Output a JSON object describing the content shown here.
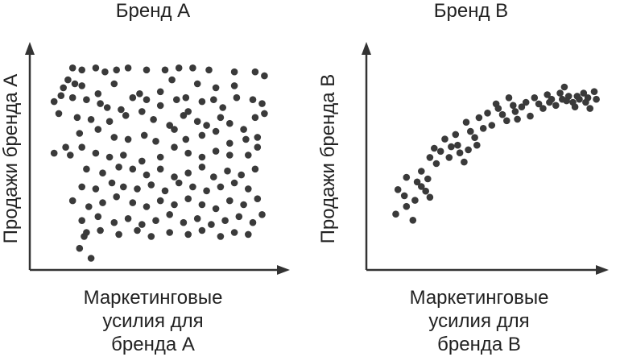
{
  "colors": {
    "ink": "#333333",
    "point": "#3a3a3a"
  },
  "chart_data": [
    {
      "type": "scatter",
      "title": "Бренд А",
      "xlabel": "Маркетинговые\nусилия для\nбренда А",
      "ylabel": "Продажи бренда А",
      "xlim": [
        0,
        100
      ],
      "ylim": [
        0,
        100
      ],
      "grid": false,
      "points": [
        [
          14,
          95
        ],
        [
          18,
          94
        ],
        [
          24,
          95
        ],
        [
          28,
          93
        ],
        [
          33,
          94
        ],
        [
          38,
          95
        ],
        [
          46,
          94
        ],
        [
          54,
          94
        ],
        [
          60,
          95
        ],
        [
          66,
          95
        ],
        [
          73,
          94
        ],
        [
          84,
          93
        ],
        [
          93,
          93
        ],
        [
          97,
          91
        ],
        [
          10,
          85
        ],
        [
          12,
          89
        ],
        [
          15,
          87
        ],
        [
          18,
          86
        ],
        [
          25,
          82
        ],
        [
          32,
          87
        ],
        [
          43,
          82
        ],
        [
          52,
          83
        ],
        [
          57,
          89
        ],
        [
          63,
          80
        ],
        [
          68,
          87
        ],
        [
          76,
          85
        ],
        [
          84,
          86
        ],
        [
          92,
          79
        ],
        [
          6,
          78
        ],
        [
          9,
          81
        ],
        [
          14,
          80
        ],
        [
          20,
          79
        ],
        [
          26,
          77
        ],
        [
          29,
          75
        ],
        [
          35,
          74
        ],
        [
          40,
          80
        ],
        [
          46,
          79
        ],
        [
          52,
          76
        ],
        [
          59,
          79
        ],
        [
          64,
          73
        ],
        [
          70,
          78
        ],
        [
          75,
          79
        ],
        [
          79,
          75
        ],
        [
          85,
          80
        ],
        [
          96,
          77
        ],
        [
          8,
          72
        ],
        [
          16,
          70
        ],
        [
          22,
          69
        ],
        [
          30,
          68
        ],
        [
          37,
          71
        ],
        [
          44,
          73
        ],
        [
          49,
          69
        ],
        [
          56,
          66
        ],
        [
          62,
          71
        ],
        [
          68,
          68
        ],
        [
          72,
          66
        ],
        [
          78,
          70
        ],
        [
          82,
          67
        ],
        [
          88,
          64
        ],
        [
          93,
          70
        ],
        [
          97,
          72
        ],
        [
          17,
          62
        ],
        [
          25,
          64
        ],
        [
          32,
          60
        ],
        [
          38,
          59
        ],
        [
          45,
          61
        ],
        [
          50,
          58
        ],
        [
          58,
          64
        ],
        [
          63,
          59
        ],
        [
          70,
          61
        ],
        [
          76,
          63
        ],
        [
          82,
          57
        ],
        [
          89,
          59
        ],
        [
          94,
          60
        ],
        [
          6,
          52
        ],
        [
          11,
          55
        ],
        [
          13,
          51
        ],
        [
          18,
          55
        ],
        [
          24,
          52
        ],
        [
          30,
          50
        ],
        [
          36,
          51
        ],
        [
          44,
          48
        ],
        [
          52,
          50
        ],
        [
          58,
          55
        ],
        [
          64,
          52
        ],
        [
          70,
          50
        ],
        [
          76,
          53
        ],
        [
          82,
          51
        ],
        [
          90,
          51
        ],
        [
          94,
          55
        ],
        [
          20,
          44
        ],
        [
          27,
          42
        ],
        [
          34,
          45
        ],
        [
          40,
          44
        ],
        [
          46,
          41
        ],
        [
          52,
          44
        ],
        [
          58,
          40
        ],
        [
          64,
          42
        ],
        [
          70,
          45
        ],
        [
          75,
          40
        ],
        [
          81,
          43
        ],
        [
          87,
          41
        ],
        [
          93,
          44
        ],
        [
          18,
          35
        ],
        [
          24,
          34
        ],
        [
          31,
          37
        ],
        [
          36,
          35
        ],
        [
          42,
          34
        ],
        [
          48,
          36
        ],
        [
          54,
          33
        ],
        [
          60,
          37
        ],
        [
          66,
          35
        ],
        [
          72,
          33
        ],
        [
          78,
          35
        ],
        [
          84,
          37
        ],
        [
          90,
          34
        ],
        [
          14,
          28
        ],
        [
          21,
          25
        ],
        [
          27,
          27
        ],
        [
          33,
          30
        ],
        [
          40,
          27
        ],
        [
          46,
          25
        ],
        [
          52,
          28
        ],
        [
          58,
          26
        ],
        [
          64,
          29
        ],
        [
          70,
          26
        ],
        [
          76,
          24
        ],
        [
          82,
          28
        ],
        [
          88,
          26
        ],
        [
          94,
          29
        ],
        [
          18,
          18
        ],
        [
          25,
          20
        ],
        [
          32,
          17
        ],
        [
          38,
          19
        ],
        [
          44,
          16
        ],
        [
          50,
          18
        ],
        [
          56,
          21
        ],
        [
          62,
          17
        ],
        [
          68,
          19
        ],
        [
          74,
          16
        ],
        [
          80,
          18
        ],
        [
          86,
          20
        ],
        [
          92,
          17
        ],
        [
          96,
          21
        ],
        [
          20,
          12
        ],
        [
          26,
          13
        ],
        [
          34,
          11
        ],
        [
          42,
          13
        ],
        [
          48,
          10
        ],
        [
          56,
          12
        ],
        [
          64,
          11
        ],
        [
          70,
          13
        ],
        [
          78,
          10
        ],
        [
          84,
          12
        ],
        [
          90,
          11
        ],
        [
          17,
          4
        ],
        [
          19,
          10
        ],
        [
          22,
          -1
        ]
      ]
    },
    {
      "type": "scatter",
      "title": "Бренд В",
      "xlabel": "Маркетинговые\nусилия для\nбренда В",
      "ylabel": "Продажи бренда В",
      "xlim": [
        0,
        100
      ],
      "ylim": [
        0,
        100
      ],
      "grid": false,
      "points": [
        [
          7,
          17
        ],
        [
          8,
          33
        ],
        [
          11,
          29
        ],
        [
          12,
          41
        ],
        [
          12,
          22
        ],
        [
          15,
          13
        ],
        [
          16,
          26
        ],
        [
          17,
          38
        ],
        [
          19,
          45
        ],
        [
          19,
          35
        ],
        [
          21,
          32
        ],
        [
          23,
          28
        ],
        [
          22,
          40
        ],
        [
          23,
          54
        ],
        [
          25,
          60
        ],
        [
          26,
          50
        ],
        [
          28,
          58
        ],
        [
          30,
          66
        ],
        [
          32,
          54
        ],
        [
          33,
          61
        ],
        [
          35,
          69
        ],
        [
          36,
          62
        ],
        [
          37,
          57
        ],
        [
          39,
          51
        ],
        [
          41,
          59
        ],
        [
          42,
          71
        ],
        [
          44,
          67
        ],
        [
          45,
          62
        ],
        [
          40,
          77
        ],
        [
          46,
          80
        ],
        [
          48,
          73
        ],
        [
          50,
          83
        ],
        [
          52,
          75
        ],
        [
          54,
          89
        ],
        [
          55,
          86
        ],
        [
          57,
          82
        ],
        [
          59,
          78
        ],
        [
          60,
          93
        ],
        [
          62,
          88
        ],
        [
          63,
          84
        ],
        [
          64,
          79
        ],
        [
          66,
          87
        ],
        [
          68,
          90
        ],
        [
          70,
          81
        ],
        [
          72,
          93
        ],
        [
          74,
          89
        ],
        [
          76,
          86
        ],
        [
          78,
          95
        ],
        [
          79,
          90
        ],
        [
          80,
          92
        ],
        [
          82,
          88
        ],
        [
          84,
          96
        ],
        [
          85,
          92
        ],
        [
          86,
          100
        ],
        [
          87,
          91
        ],
        [
          88,
          94
        ],
        [
          90,
          90
        ],
        [
          91,
          87
        ],
        [
          92,
          94
        ],
        [
          93,
          92
        ],
        [
          95,
          96
        ],
        [
          96,
          90
        ],
        [
          97,
          93
        ],
        [
          98,
          86
        ],
        [
          100,
          97
        ],
        [
          101,
          92
        ]
      ]
    }
  ]
}
